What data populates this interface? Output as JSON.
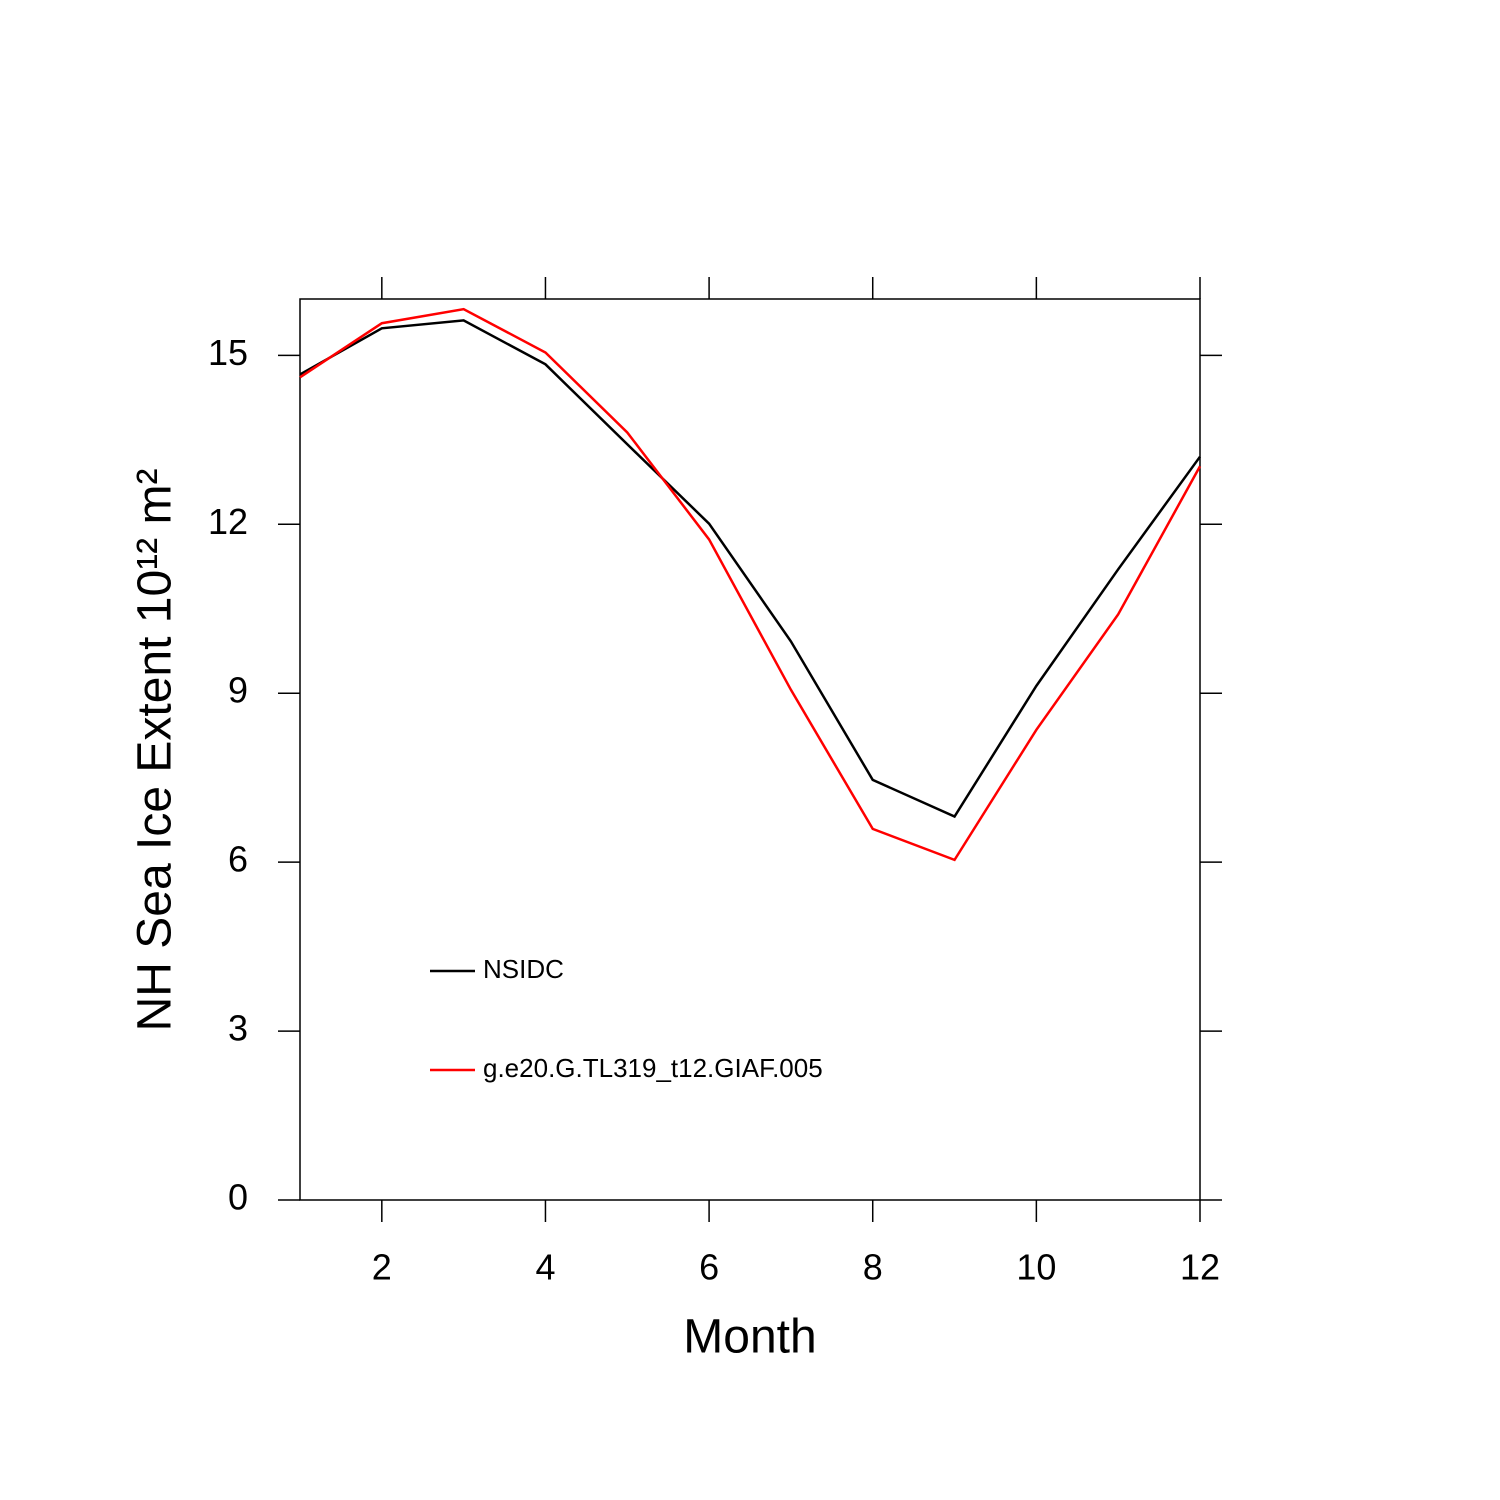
{
  "chart_data": {
    "type": "line",
    "x_label": "Month",
    "y_label": "NH Sea Ice Extent 10¹² m²",
    "x": [
      1,
      2,
      3,
      4,
      5,
      6,
      7,
      8,
      9,
      10,
      11,
      12
    ],
    "series": [
      {
        "name": "NSIDC",
        "color": "#000000",
        "values": [
          14.66,
          15.48,
          15.62,
          14.84,
          13.42,
          12.01,
          9.92,
          7.46,
          6.81,
          9.13,
          11.2,
          13.2
        ]
      },
      {
        "name": "g.e20.G.TL319_t12.GIAF.005",
        "color": "#ff0000",
        "values": [
          14.61,
          15.57,
          15.82,
          15.05,
          13.63,
          11.73,
          9.06,
          6.59,
          6.04,
          8.35,
          10.4,
          13.03
        ]
      }
    ],
    "xlim": [
      1,
      12
    ],
    "xticks": [
      2,
      4,
      6,
      8,
      10,
      12
    ],
    "ylim": [
      0,
      16
    ],
    "yticks": [
      0,
      3,
      6,
      9,
      12,
      15
    ],
    "grid": false
  }
}
